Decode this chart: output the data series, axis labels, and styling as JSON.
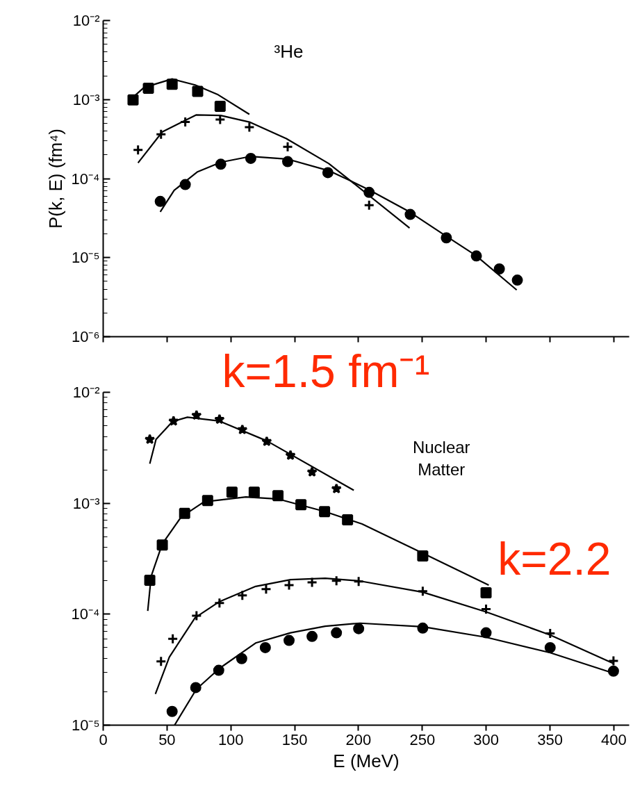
{
  "chart_data": [
    {
      "type": "scatter",
      "ylabel": "P(k, E) (fm⁴)",
      "annotations": [
        "³He"
      ],
      "log": true,
      "tick_labels": "y",
      "xlim": [
        0,
        412
      ],
      "ylim": [
        1e-06,
        0.01
      ],
      "xticks": [
        0,
        50,
        100,
        150,
        200,
        250,
        300,
        350,
        400
      ],
      "yticks": [
        {
          "value": 1e-06,
          "label": "10⁻⁶"
        },
        {
          "value": 1e-05,
          "label": "10⁻⁵"
        },
        {
          "value": 0.0001,
          "label": "10⁻⁴"
        },
        {
          "value": 0.001,
          "label": "10⁻³"
        },
        {
          "value": 0.01,
          "label": "10⁻²"
        }
      ],
      "series": [
        {
          "type": "scatter",
          "marker": "square",
          "color": "#000000",
          "x": [
            23.4,
            35.4,
            54,
            74,
            91.6
          ],
          "values": [
            0.00099,
            0.00139,
            0.00156,
            0.00127,
            0.00082
          ]
        },
        {
          "type": "line",
          "color": "#000000",
          "x": [
            23.4,
            32,
            54,
            72,
            90,
            114.5
          ],
          "values": [
            0.00107,
            0.00142,
            0.00182,
            0.00153,
            0.00115,
            0.00065
          ]
        },
        {
          "type": "scatter",
          "marker": "cross",
          "color": "#000000",
          "x": [
            27.3,
            45.3,
            64.3,
            91.6,
            114.5,
            144.5,
            208.3
          ],
          "values": [
            0.00023,
            0.000363,
            0.00052,
            0.00056,
            0.000447,
            0.000253,
            4.6e-05
          ]
        },
        {
          "type": "line",
          "color": "#000000",
          "x": [
            27.3,
            46.3,
            73,
            92,
            114.5,
            143.5,
            176.7,
            190.3,
            240
          ],
          "values": [
            0.000158,
            0.00039,
            0.00064,
            0.00063,
            0.00052,
            0.00032,
            0.000155,
            0.000104,
            2.37e-05
          ]
        },
        {
          "type": "scatter",
          "marker": "circle",
          "color": "#000000",
          "x": [
            44.7,
            64.3,
            92.1,
            115.6,
            144.5,
            176,
            208.3,
            240.5,
            268.8,
            292.3,
            310.3,
            324.4
          ],
          "values": [
            5.15e-05,
            8.4e-05,
            0.000152,
            0.00018,
            0.000164,
            0.000119,
            6.7e-05,
            3.52e-05,
            1.78e-05,
            1.05e-05,
            7.2e-06,
            5.2e-06
          ]
        },
        {
          "type": "line",
          "color": "#000000",
          "x": [
            44.7,
            55.6,
            73.6,
            92.1,
            115.6,
            144,
            176.7,
            193.6,
            208.3,
            239.9,
            268.3,
            291.7,
            323.9
          ],
          "values": [
            3.8e-05,
            7.1e-05,
            0.000121,
            0.000161,
            0.000191,
            0.000177,
            0.000126,
            9.4e-05,
            7.2e-05,
            3.8e-05,
            1.89e-05,
            1.07e-05,
            3.9e-06
          ]
        }
      ]
    },
    {
      "type": "scatter",
      "xlabel": "E (MeV)",
      "annotations": [
        "Nuclear Matter",
        "k=1.5 fm⁻¹",
        "k=2.2"
      ],
      "log": true,
      "xlim": [
        0,
        412
      ],
      "ylim": [
        1e-05,
        0.01
      ],
      "xticks": [
        0,
        50,
        100,
        150,
        200,
        250,
        300,
        350,
        400
      ],
      "yticks": [
        {
          "value": 1e-05,
          "label": "10⁻⁵"
        },
        {
          "value": 0.0001,
          "label": "10⁻⁴"
        },
        {
          "value": 0.001,
          "label": "10⁻³"
        },
        {
          "value": 0.01,
          "label": "10⁻²"
        }
      ],
      "series": [
        {
          "type": "scatter",
          "marker": "star",
          "color": "#000000",
          "x": [
            36.5,
            55.1,
            73.1,
            91.1,
            109,
            128.1,
            146.7,
            163.6,
            182.7
          ],
          "values": [
            0.00376,
            0.0055,
            0.0062,
            0.0057,
            0.0046,
            0.0036,
            0.0027,
            0.00191,
            0.00135
          ]
        },
        {
          "type": "line",
          "color": "#000000",
          "x": [
            36.5,
            41.4,
            54.5,
            66,
            91.1,
            128.1,
            196.3
          ],
          "values": [
            0.00227,
            0.00376,
            0.00547,
            0.00596,
            0.0055,
            0.00365,
            0.00131
          ]
        },
        {
          "type": "scatter",
          "marker": "square",
          "color": "#000000",
          "x": [
            36.5,
            46.3,
            63.8,
            81.8,
            100.9,
            118.3,
            136.9,
            154.9,
            173.4,
            191.4,
            250.3,
            299.9
          ],
          "values": [
            0.000202,
            0.00042,
            0.00081,
            0.00106,
            0.00126,
            0.00126,
            0.00117,
            0.00097,
            0.00084,
            0.00071,
            0.000335,
            0.000156
          ]
        },
        {
          "type": "line",
          "color": "#000000",
          "x": [
            34.9,
            37.6,
            46.3,
            61,
            79,
            111.8,
            137.4,
            173.9,
            202.8,
            250.3,
            302
          ],
          "values": [
            0.000107,
            0.00022,
            0.00043,
            0.00075,
            0.00103,
            0.00114,
            0.00109,
            0.00084,
            0.00065,
            0.000355,
            0.000183
          ]
        },
        {
          "type": "scatter",
          "marker": "cross",
          "color": "#000000",
          "x": [
            45.3,
            54.5,
            73.1,
            91.1,
            109,
            127.6,
            145.6,
            163.6,
            182.7,
            200.1,
            250.3,
            299.9,
            350.1,
            399.7
          ],
          "values": [
            3.76e-05,
            6e-05,
            9.7e-05,
            0.000126,
            0.000148,
            0.000168,
            0.000183,
            0.000194,
            0.0002,
            0.000197,
            0.000161,
            0.000111,
            6.7e-05,
            3.8e-05
          ]
        },
        {
          "type": "line",
          "color": "#000000",
          "x": [
            40.9,
            51.8,
            72,
            91.1,
            119.4,
            146.7,
            173.9,
            200.1,
            250.3,
            299.9,
            350.1,
            399.7
          ],
          "values": [
            1.91e-05,
            4.1e-05,
            9.3e-05,
            0.00013,
            0.000178,
            0.000205,
            0.000211,
            0.0002,
            0.000158,
            0.000105,
            6.5e-05,
            3.6e-05
          ]
        },
        {
          "type": "scatter",
          "marker": "circle",
          "color": "#000000",
          "x": [
            54,
            72.5,
            90.5,
            108.5,
            127,
            145.6,
            163.6,
            182.7,
            200.1,
            250.3,
            299.9,
            350.1,
            399.7
          ],
          "values": [
            1.33e-05,
            2.18e-05,
            3.12e-05,
            3.98e-05,
            5e-05,
            5.8e-05,
            6.3e-05,
            6.8e-05,
            7.4e-05,
            7.5e-05,
            6.8e-05,
            5e-05,
            3.07e-05
          ]
        },
        {
          "type": "line",
          "color": "#000000",
          "x": [
            55.9,
            73,
            91.1,
            119.4,
            146.7,
            173.9,
            201.2,
            250.3,
            299.9,
            350.1,
            399.7
          ],
          "values": [
            1e-05,
            2.11e-05,
            3.25e-05,
            5.5e-05,
            6.8e-05,
            7.8e-05,
            8.3e-05,
            7.7e-05,
            6.2e-05,
            4.5e-05,
            2.94e-05
          ]
        }
      ]
    }
  ]
}
